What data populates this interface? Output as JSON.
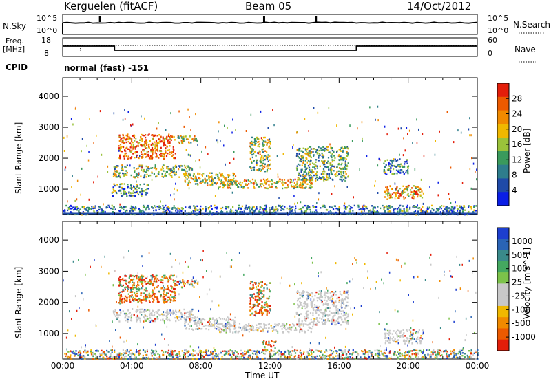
{
  "header": {
    "station": "Kerguelen (fitACF)",
    "beam": "Beam 05",
    "date": "14/Oct/2012"
  },
  "noise_panel": {
    "left_label": "N.Sky",
    "right_label": "N.Search",
    "top_tick": "10^5",
    "bottom_tick": "10^0"
  },
  "freq_panel": {
    "left_label_1": "Freq.",
    "left_label_2": "[MHz]",
    "right_label": "Nave",
    "left_ticks": [
      "18",
      "8"
    ],
    "right_ticks": [
      "60",
      "0"
    ]
  },
  "cpid": {
    "label": "CPID",
    "mode": "normal (fast) -151"
  },
  "colors": {
    "power": [
      "#0a1ee6",
      "#1f4aa8",
      "#2e7d8c",
      "#3a9a5c",
      "#9ac23a",
      "#f0b800",
      "#f08a00",
      "#ec5a00",
      "#e31e0a"
    ],
    "velocity": [
      "#1d3fcf",
      "#2a64b6",
      "#3a8a8a",
      "#44a860",
      "#7cc24a",
      "#c8c8c8",
      "#c8c8c8",
      "#f0b800",
      "#f08a00",
      "#ec5a00",
      "#e31e0a"
    ]
  },
  "chart_data": [
    {
      "type": "heatmap",
      "name": "power",
      "ylabel": "Slant Range [km]",
      "xlabel": "Time UT",
      "xticks": [
        "00:00",
        "04:00",
        "08:00",
        "12:00",
        "16:00",
        "20:00",
        "00:00"
      ],
      "xlim_hours": [
        0,
        24
      ],
      "yticks": [
        "1000",
        "2000",
        "3000",
        "4000"
      ],
      "ylim_km": [
        180,
        4600
      ],
      "colorbar": {
        "label": "Power [dB]",
        "ticks": [
          "4",
          "8",
          "12",
          "16",
          "20",
          "24",
          "28"
        ],
        "range": [
          0,
          30
        ]
      },
      "echo_regions": [
        {
          "t0": 3.2,
          "t1": 6.5,
          "r0": 2000,
          "r1": 2800,
          "level": 0.8
        },
        {
          "t0": 6.3,
          "t1": 7.8,
          "r0": 2500,
          "r1": 2750,
          "level": 0.55
        },
        {
          "t0": 2.9,
          "t1": 7.5,
          "r0": 1400,
          "r1": 1800,
          "level": 0.45
        },
        {
          "t0": 7.0,
          "t1": 10.0,
          "r0": 1150,
          "r1": 1550,
          "level": 0.55
        },
        {
          "t0": 9.0,
          "t1": 14.5,
          "r0": 1050,
          "r1": 1350,
          "level": 0.6
        },
        {
          "t0": 13.5,
          "t1": 16.5,
          "r0": 1300,
          "r1": 2400,
          "level": 0.4
        },
        {
          "t0": 10.8,
          "t1": 12.0,
          "r0": 1600,
          "r1": 2700,
          "level": 0.5
        },
        {
          "t0": 18.6,
          "t1": 20.8,
          "r0": 700,
          "r1": 1150,
          "level": 0.7
        },
        {
          "t0": 18.5,
          "t1": 20.0,
          "r0": 1500,
          "r1": 2000,
          "level": 0.3
        },
        {
          "t0": 2.8,
          "t1": 5.0,
          "r0": 800,
          "r1": 1200,
          "level": 0.35
        },
        {
          "t0": 0.0,
          "t1": 24.0,
          "r0": 200,
          "r1": 500,
          "level": 0.3
        }
      ]
    },
    {
      "type": "heatmap",
      "name": "velocity",
      "ylabel": "Slant Range [km]",
      "xlabel": "Time UT",
      "xticks": [
        "00:00",
        "04:00",
        "08:00",
        "12:00",
        "16:00",
        "20:00",
        "00:00"
      ],
      "xlim_hours": [
        0,
        24
      ],
      "yticks": [
        "1000",
        "2000",
        "3000",
        "4000"
      ],
      "ylim_km": [
        180,
        4600
      ],
      "colorbar": {
        "label": "Velocity [m s^-1]",
        "ticks": [
          "1000",
          "500",
          "100",
          "25",
          "-25",
          "-100",
          "-500",
          "-1000"
        ]
      },
      "echo_regions": [
        {
          "t0": 3.2,
          "t1": 6.5,
          "r0": 2000,
          "r1": 2900,
          "level": 0.85
        },
        {
          "t0": 6.3,
          "t1": 7.8,
          "r0": 2500,
          "r1": 2750,
          "level": 0.3
        },
        {
          "t0": 2.9,
          "t1": 7.5,
          "r0": 1400,
          "r1": 1800,
          "level": 0.5
        },
        {
          "t0": 7.0,
          "t1": 10.0,
          "r0": 1150,
          "r1": 1550,
          "level": 0.5
        },
        {
          "t0": 9.0,
          "t1": 14.5,
          "r0": 1050,
          "r1": 1350,
          "level": 0.5
        },
        {
          "t0": 13.5,
          "t1": 16.5,
          "r0": 1300,
          "r1": 2400,
          "level": 0.5
        },
        {
          "t0": 10.8,
          "t1": 12.0,
          "r0": 1600,
          "r1": 2700,
          "level": 0.85
        },
        {
          "t0": 18.6,
          "t1": 20.8,
          "r0": 700,
          "r1": 1150,
          "level": 0.5
        },
        {
          "t0": 11.5,
          "t1": 12.3,
          "r0": 450,
          "r1": 800,
          "level": 0.9
        },
        {
          "t0": 0.0,
          "t1": 24.0,
          "r0": 200,
          "r1": 500,
          "level": 0.3
        }
      ]
    }
  ]
}
